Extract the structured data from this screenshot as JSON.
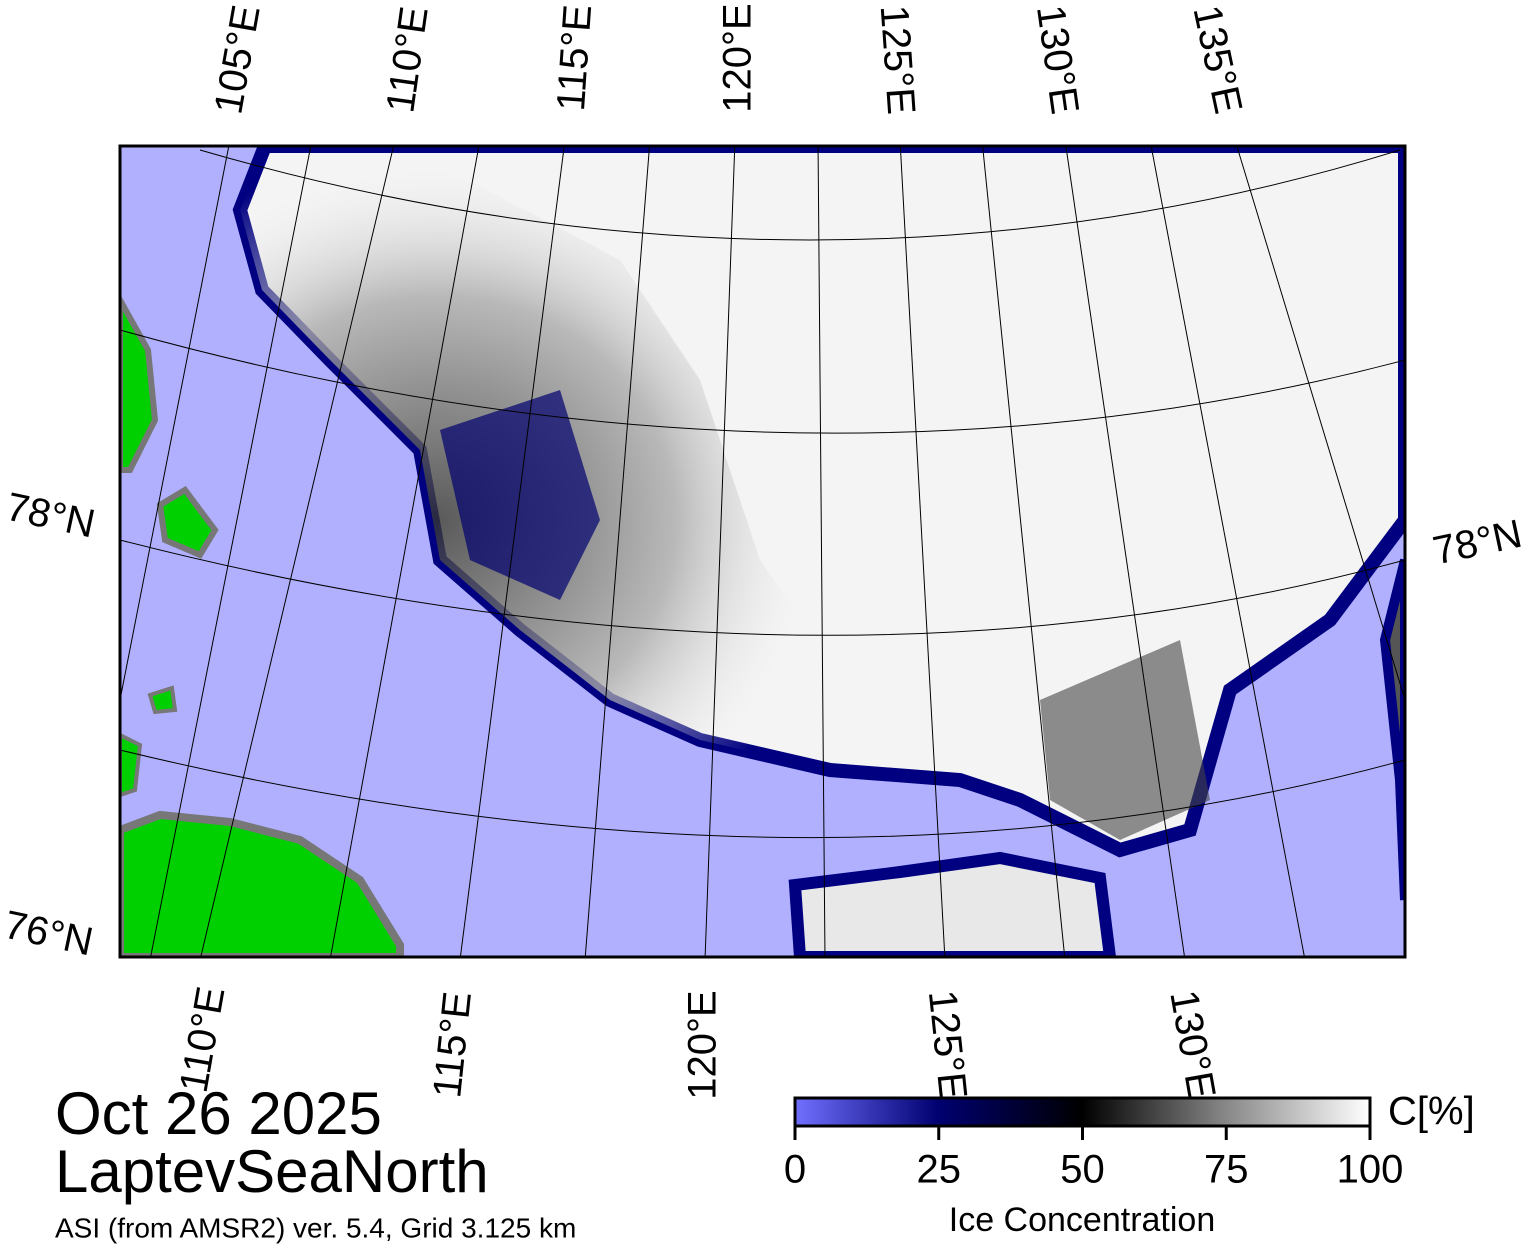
{
  "map": {
    "top_lon_labels": [
      "105°E",
      "110°E",
      "115°E",
      "120°E",
      "125°E",
      "130°E",
      "135°E"
    ],
    "bottom_lon_labels": [
      "110°E",
      "115°E",
      "120°E",
      "125°E",
      "130°E"
    ],
    "left_lat_labels": [
      "78°N",
      "76°N"
    ],
    "right_lat_labels": [
      "78°N"
    ]
  },
  "date": "Oct 26 2025",
  "region": "LaptevSeaNorth",
  "source": "ASI (from AMSR2) ver. 5.4,  Grid 3.125 km",
  "colorbar": {
    "range": [
      0,
      100
    ],
    "ticks": [
      0,
      25,
      50,
      75,
      100
    ],
    "unit": "C[%]",
    "label": "Ice Concentration"
  }
}
